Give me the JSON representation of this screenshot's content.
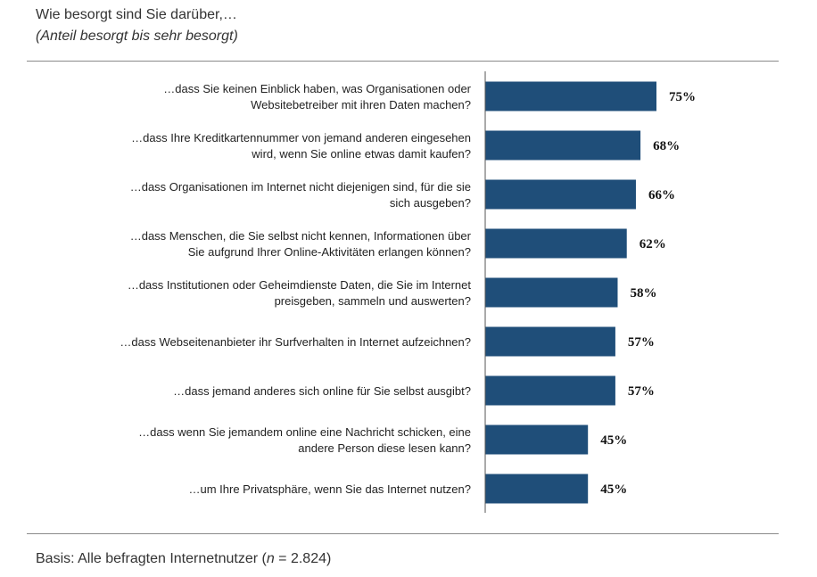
{
  "chart_data": {
    "type": "bar",
    "orientation": "horizontal",
    "title": "Wie besorgt sind Sie darüber,…",
    "subtitle": "(Anteil besorgt bis sehr besorgt)",
    "categories": [
      [
        "…dass Sie keinen Einblick haben, was Organisationen oder",
        "Websitebetreiber mit ihren Daten machen?"
      ],
      [
        "…dass Ihre Kreditkartennummer von jemand anderen eingesehen",
        "wird, wenn Sie online etwas damit kaufen?"
      ],
      [
        "…dass Organisationen im Internet nicht diejenigen sind, für die sie",
        "sich ausgeben?"
      ],
      [
        "…dass Menschen, die Sie selbst nicht kennen, Informationen über",
        "Sie aufgrund Ihrer Online-Aktivitäten erlangen können?"
      ],
      [
        "…dass Institutionen oder Geheimdienste Daten, die Sie im Internet",
        "preisgeben, sammeln und auswerten?"
      ],
      [
        "…dass Webseitenanbieter ihr Surfverhalten in Internet aufzeichnen?"
      ],
      [
        "…dass jemand anderes sich online für Sie selbst ausgibt?"
      ],
      [
        "…dass wenn Sie jemandem online eine Nachricht schicken, eine",
        "andere Person diese lesen kann?"
      ],
      [
        "…um Ihre Privatsphäre, wenn Sie das Internet nutzen?"
      ]
    ],
    "values": [
      75,
      68,
      66,
      62,
      58,
      57,
      57,
      45,
      45
    ],
    "value_labels": [
      "75%",
      "68%",
      "66%",
      "62%",
      "58%",
      "57%",
      "57%",
      "45%",
      "45%"
    ],
    "xlim": [
      0,
      100
    ],
    "bar_color": "#1f4e79",
    "grid": false,
    "legend": "none"
  },
  "footer": {
    "basis_prefix": "Basis: Alle befragten Internetnutzer (",
    "n_symbol": "n",
    "basis_suffix": " = 2.824)"
  }
}
